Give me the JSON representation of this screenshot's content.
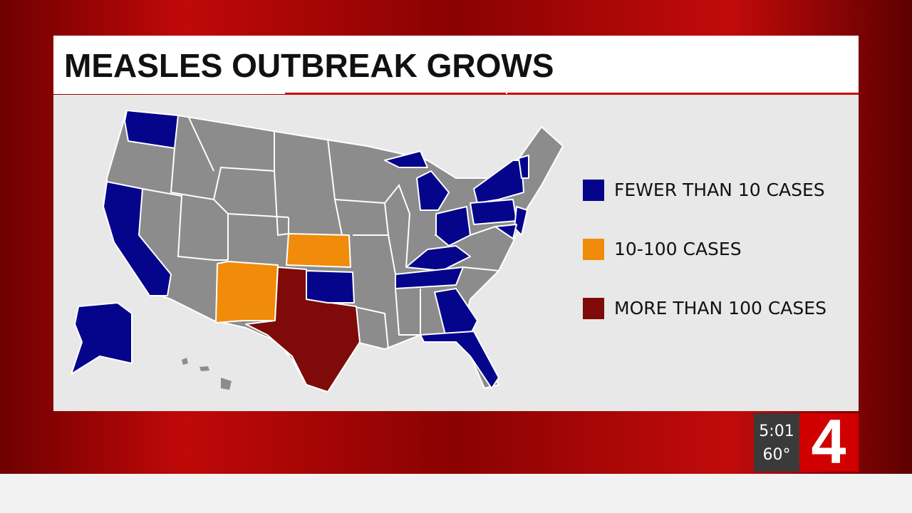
{
  "header": {
    "title": "MEASLES OUTBREAK GROWS"
  },
  "legend": [
    {
      "label": "FEWER THAN 10 CASES",
      "color": "#05058c"
    },
    {
      "label": "10-100 CASES",
      "color": "#f08c0a"
    },
    {
      "label": "MORE THAN 100 CASES",
      "color": "#7e0a0a"
    }
  ],
  "clock": {
    "time": "5:01",
    "temperature": "60°"
  },
  "logo": "4"
}
